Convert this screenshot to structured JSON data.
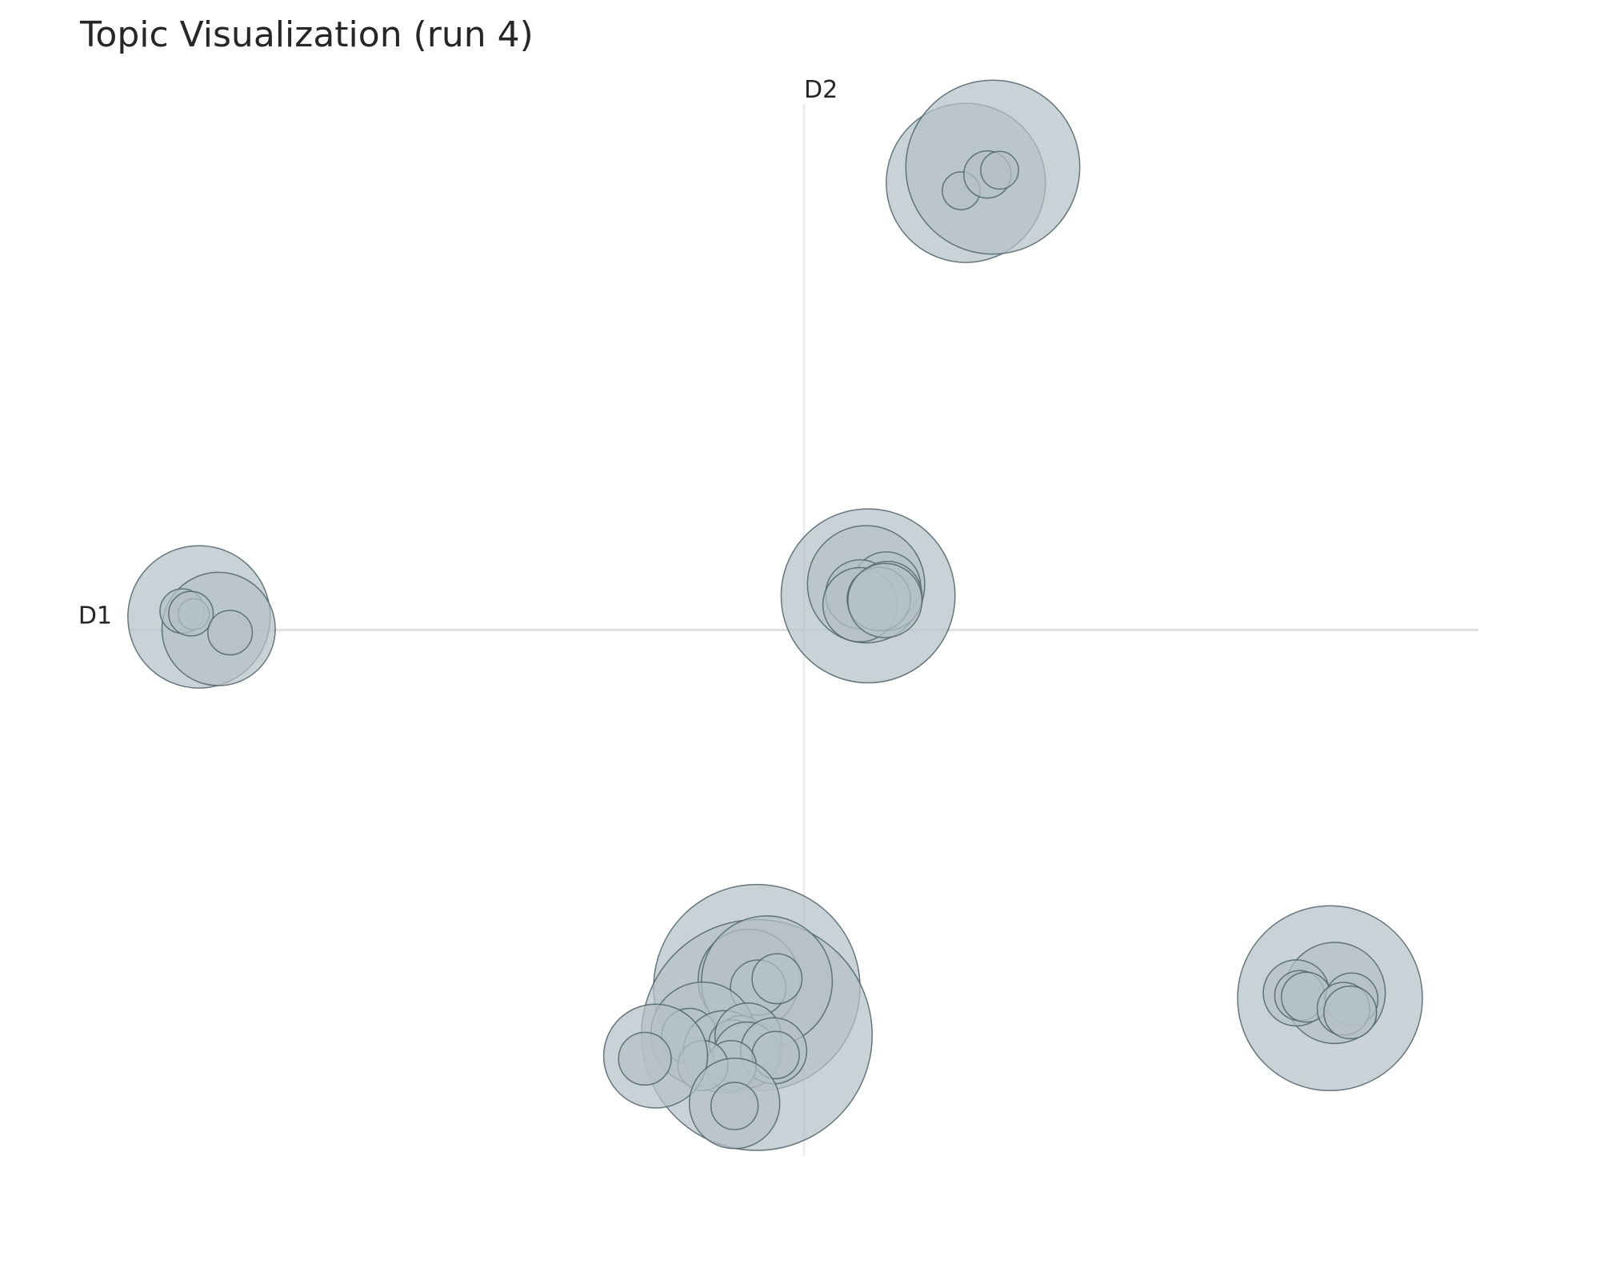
{
  "chart_data": {
    "type": "scatter",
    "title": "Topic Visualization (run 4)",
    "xlabel": "D1",
    "ylabel": "D2",
    "xlim": [
      -1,
      1
    ],
    "ylim": [
      -1,
      1
    ],
    "grid": false,
    "legend": "none",
    "colors": {
      "bubble_fill": "#b4c0c6",
      "bubble_stroke": "#4e6468",
      "axis_line": "#e0e0e0",
      "text": "#262626"
    },
    "points": [
      {
        "x": 0.24,
        "y": 0.85,
        "size": 0.059
      },
      {
        "x": 0.28,
        "y": 0.88,
        "size": 0.0645
      },
      {
        "x": 0.233,
        "y": 0.835,
        "size": 0.014
      },
      {
        "x": 0.272,
        "y": 0.866,
        "size": 0.0175
      },
      {
        "x": 0.29,
        "y": 0.874,
        "size": 0.014
      },
      {
        "x": -0.897,
        "y": 0.025,
        "size": 0.0528
      },
      {
        "x": -0.868,
        "y": 0.002,
        "size": 0.042
      },
      {
        "x": -0.922,
        "y": 0.036,
        "size": 0.0165
      },
      {
        "x": -0.905,
        "y": 0.03,
        "size": 0.0115
      },
      {
        "x": -0.909,
        "y": 0.031,
        "size": 0.0165
      },
      {
        "x": -0.851,
        "y": -0.005,
        "size": 0.0165
      },
      {
        "x": 0.095,
        "y": 0.065,
        "size": 0.0645
      },
      {
        "x": 0.092,
        "y": 0.087,
        "size": 0.0435
      },
      {
        "x": 0.122,
        "y": 0.083,
        "size": 0.0255
      },
      {
        "x": 0.083,
        "y": 0.068,
        "size": 0.0255
      },
      {
        "x": 0.124,
        "y": 0.065,
        "size": 0.0255
      },
      {
        "x": 0.083,
        "y": 0.048,
        "size": 0.0275
      },
      {
        "x": 0.111,
        "y": 0.059,
        "size": 0.0235
      },
      {
        "x": 0.12,
        "y": 0.056,
        "size": 0.0275
      },
      {
        "x": -0.07,
        "y": -0.68,
        "size": 0.0765
      },
      {
        "x": -0.07,
        "y": -0.77,
        "size": 0.0855
      },
      {
        "x": -0.082,
        "y": -0.665,
        "size": 0.0375
      },
      {
        "x": -0.055,
        "y": -0.668,
        "size": 0.0485
      },
      {
        "x": -0.068,
        "y": -0.68,
        "size": 0.0205
      },
      {
        "x": -0.04,
        "y": -0.663,
        "size": 0.0185
      },
      {
        "x": -0.15,
        "y": -0.768,
        "size": 0.0385
      },
      {
        "x": -0.17,
        "y": -0.772,
        "size": 0.0205
      },
      {
        "x": -0.118,
        "y": -0.802,
        "size": 0.0305
      },
      {
        "x": -0.075,
        "y": -0.8,
        "size": 0.0215
      },
      {
        "x": -0.093,
        "y": -0.778,
        "size": 0.0175
      },
      {
        "x": -0.106,
        "y": -0.786,
        "size": 0.0175
      },
      {
        "x": -0.083,
        "y": -0.772,
        "size": 0.0245
      },
      {
        "x": -0.085,
        "y": -0.808,
        "size": 0.0245
      },
      {
        "x": -0.045,
        "y": -0.8,
        "size": 0.0245
      },
      {
        "x": -0.042,
        "y": -0.808,
        "size": 0.0175
      },
      {
        "x": -0.108,
        "y": -0.828,
        "size": 0.0185
      },
      {
        "x": -0.15,
        "y": -0.828,
        "size": 0.0185
      },
      {
        "x": -0.22,
        "y": -0.81,
        "size": 0.0385
      },
      {
        "x": -0.236,
        "y": -0.815,
        "size": 0.0195
      },
      {
        "x": -0.103,
        "y": -0.9,
        "size": 0.0335
      },
      {
        "x": -0.103,
        "y": -0.905,
        "size": 0.0175
      },
      {
        "x": 0.78,
        "y": -0.7,
        "size": 0.0685
      },
      {
        "x": 0.787,
        "y": -0.69,
        "size": 0.0375
      },
      {
        "x": 0.73,
        "y": -0.69,
        "size": 0.0245
      },
      {
        "x": 0.735,
        "y": -0.695,
        "size": 0.0185
      },
      {
        "x": 0.745,
        "y": -0.698,
        "size": 0.0185
      },
      {
        "x": 0.812,
        "y": -0.702,
        "size": 0.0195
      },
      {
        "x": 0.8,
        "y": -0.72,
        "size": 0.0195
      },
      {
        "x": 0.81,
        "y": -0.727,
        "size": 0.0195
      }
    ]
  }
}
